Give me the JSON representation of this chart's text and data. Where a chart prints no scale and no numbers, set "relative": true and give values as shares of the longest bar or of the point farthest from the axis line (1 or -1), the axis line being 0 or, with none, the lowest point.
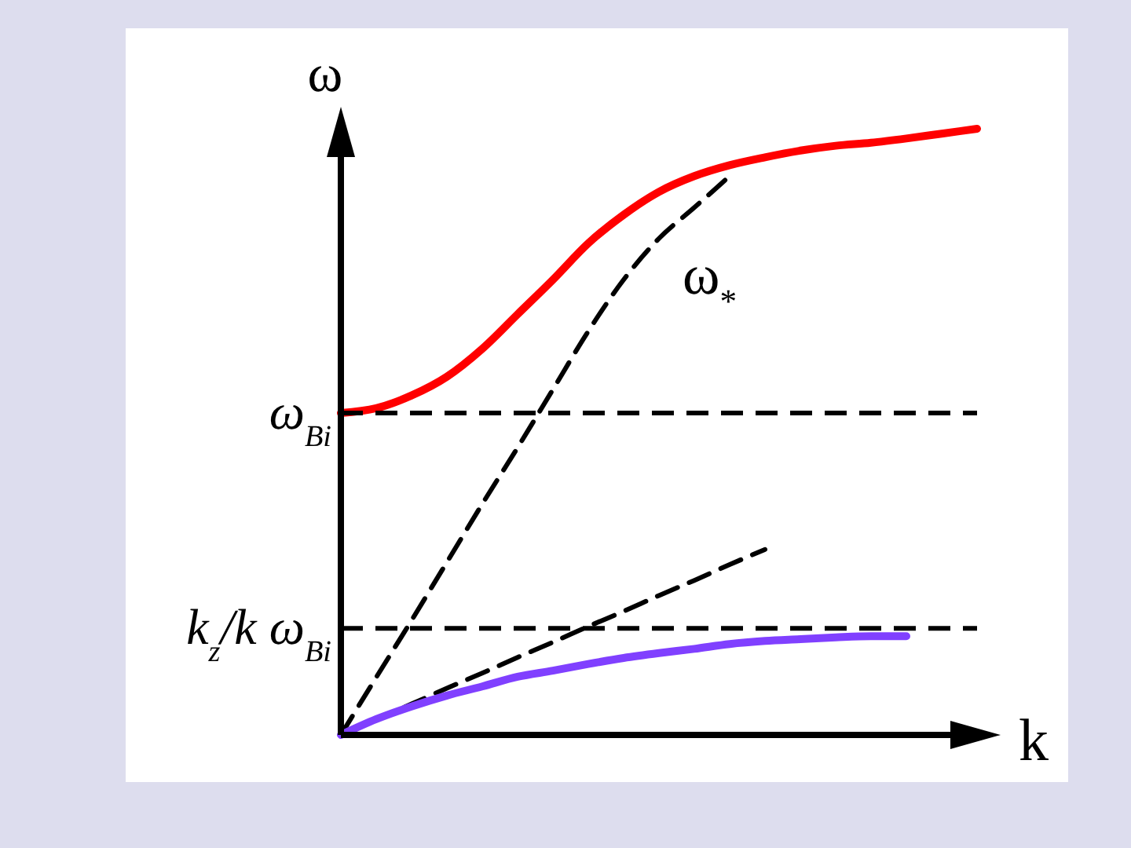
{
  "chart_data": {
    "type": "line",
    "relative": true,
    "xlabel": "k",
    "ylabel": "ω",
    "categories": [
      null,
      null,
      null,
      null,
      null,
      null,
      null,
      null,
      null,
      null,
      null,
      null,
      null,
      null,
      null,
      null,
      null,
      null,
      null
    ],
    "series": [
      {
        "color": "#ff0000",
        "line_style": "solid",
        "values": [
          0.531,
          0.539,
          0.56,
          0.591,
          0.637,
          0.694,
          0.751,
          0.811,
          0.858,
          0.896,
          0.922,
          0.94,
          0.953,
          0.964,
          0.972,
          0.977,
          0.984,
          0.992,
          1
        ]
      },
      {
        "color": "#000000",
        "line_style": "dashed",
        "values": [
          0,
          0.095,
          0.189,
          0.285,
          0.381,
          0.474,
          0.57,
          0.666,
          0.751,
          0.819,
          0.87,
          0.922,
          null,
          null,
          null,
          null,
          null,
          null,
          null
        ]
      },
      {
        "color": "#000000",
        "line_style": "dashed",
        "values": [
          0,
          0.026,
          0.051,
          0.077,
          0.102,
          0.128,
          0.153,
          0.179,
          0.204,
          0.23,
          0.255,
          0.281,
          0.306,
          null,
          null,
          null,
          null,
          null,
          null
        ]
      },
      {
        "color": "#8040ff",
        "line_style": "solid",
        "values": [
          0,
          0.026,
          0.047,
          0.065,
          0.08,
          0.096,
          0.106,
          0.117,
          0.127,
          0.135,
          0.142,
          0.15,
          0.155,
          0.158,
          0.161,
          0.163,
          0.163,
          null,
          null
        ]
      }
    ],
    "ref_lines": [
      {
        "axis": "y",
        "value": 0.531,
        "label": "ω$_{Bi}$",
        "color": "#000000",
        "line_style": "dashed"
      },
      {
        "axis": "y",
        "value": 0.176,
        "label": "k$_{z}$/k ω$_{Bi}$",
        "color": "#000000",
        "line_style": "dashed"
      }
    ],
    "annotations": [
      "ω$_{*}$"
    ]
  }
}
